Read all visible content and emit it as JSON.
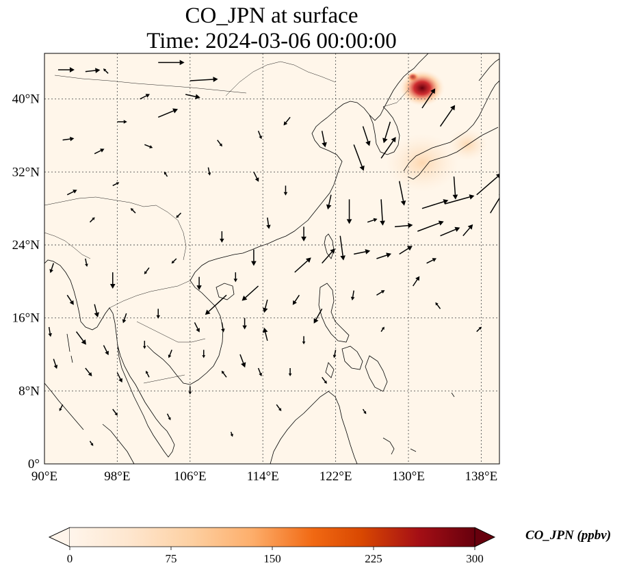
{
  "title": {
    "line1": "CO_JPN at surface",
    "line2": "Time: 2024-03-06 00:00:00"
  },
  "map": {
    "extent": {
      "lon_min": 90,
      "lon_max": 140,
      "lat_min": 0,
      "lat_max": 45
    },
    "background_color": "#fff6ea",
    "lon_ticks": [
      {
        "value": 90,
        "label": "90°E"
      },
      {
        "value": 98,
        "label": "98°E"
      },
      {
        "value": 106,
        "label": "106°E"
      },
      {
        "value": 114,
        "label": "114°E"
      },
      {
        "value": 122,
        "label": "122°E"
      },
      {
        "value": 130,
        "label": "130°E"
      },
      {
        "value": 138,
        "label": "138°E"
      }
    ],
    "lat_ticks": [
      {
        "value": 0,
        "label": "0°"
      },
      {
        "value": 8,
        "label": "8°N"
      },
      {
        "value": 16,
        "label": "16°N"
      },
      {
        "value": 24,
        "label": "24°N"
      },
      {
        "value": 32,
        "label": "32°N"
      },
      {
        "value": 40,
        "label": "40°N"
      }
    ],
    "hotspots": [
      {
        "lon": 130.5,
        "lat": 42.4,
        "value": 300,
        "radius_deg": 0.7
      },
      {
        "lon": 131.5,
        "lat": 41.2,
        "value": 160,
        "radius_deg": 2.5
      },
      {
        "lon": 136.5,
        "lat": 35.0,
        "value": 90,
        "radius_deg": 2.2
      },
      {
        "lon": 131.5,
        "lat": 33.0,
        "value": 40,
        "radius_deg": 4.0
      }
    ],
    "wind_vectors": [
      {
        "lon": 91.5,
        "lat": 43.2,
        "u": 1.0,
        "v": 0.0
      },
      {
        "lon": 94.5,
        "lat": 43.0,
        "u": 0.9,
        "v": 0.1
      },
      {
        "lon": 97.0,
        "lat": 42.8,
        "u": -0.3,
        "v": 0.3
      },
      {
        "lon": 102.5,
        "lat": 44.0,
        "u": 1.6,
        "v": 0.0
      },
      {
        "lon": 106.0,
        "lat": 42.0,
        "u": 1.7,
        "v": 0.1
      },
      {
        "lon": 100.5,
        "lat": 40.0,
        "u": 0.6,
        "v": 0.3
      },
      {
        "lon": 105.5,
        "lat": 40.5,
        "u": 0.9,
        "v": -0.2
      },
      {
        "lon": 102.5,
        "lat": 38.0,
        "u": 1.2,
        "v": 0.5
      },
      {
        "lon": 98.0,
        "lat": 37.5,
        "u": 0.6,
        "v": 0.0
      },
      {
        "lon": 92.0,
        "lat": 35.5,
        "u": 0.7,
        "v": 0.1
      },
      {
        "lon": 95.5,
        "lat": 34.0,
        "u": 0.6,
        "v": 0.3
      },
      {
        "lon": 101.0,
        "lat": 35.0,
        "u": 0.5,
        "v": -0.2
      },
      {
        "lon": 109.0,
        "lat": 35.5,
        "u": 0.3,
        "v": -0.4
      },
      {
        "lon": 113.5,
        "lat": 36.5,
        "u": 0.2,
        "v": -0.5
      },
      {
        "lon": 117.0,
        "lat": 38.0,
        "u": -0.4,
        "v": -0.5
      },
      {
        "lon": 120.5,
        "lat": 36.5,
        "u": 0.2,
        "v": -1.0
      },
      {
        "lon": 125.0,
        "lat": 37.0,
        "u": 0.4,
        "v": -1.2
      },
      {
        "lon": 128.0,
        "lat": 37.5,
        "u": -0.4,
        "v": -1.3
      },
      {
        "lon": 131.5,
        "lat": 39.0,
        "u": 0.8,
        "v": 1.2
      },
      {
        "lon": 133.5,
        "lat": 37.0,
        "u": 0.9,
        "v": 1.3
      },
      {
        "lon": 124.0,
        "lat": 35.0,
        "u": 0.6,
        "v": -1.6
      },
      {
        "lon": 127.0,
        "lat": 33.5,
        "u": 0.9,
        "v": 1.3
      },
      {
        "lon": 129.0,
        "lat": 31.0,
        "u": 0.3,
        "v": -1.5
      },
      {
        "lon": 135.0,
        "lat": 31.5,
        "u": 0.1,
        "v": -1.4
      },
      {
        "lon": 137.5,
        "lat": 29.5,
        "u": 1.5,
        "v": 1.3
      },
      {
        "lon": 139.0,
        "lat": 27.5,
        "u": 0.8,
        "v": 1.3
      },
      {
        "lon": 134.0,
        "lat": 28.5,
        "u": 1.8,
        "v": 0.5
      },
      {
        "lon": 131.5,
        "lat": 28.0,
        "u": 1.6,
        "v": 0.5
      },
      {
        "lon": 127.0,
        "lat": 29.0,
        "u": 0.1,
        "v": -1.6
      },
      {
        "lon": 123.5,
        "lat": 29.0,
        "u": 0.0,
        "v": -1.5
      },
      {
        "lon": 125.5,
        "lat": 26.5,
        "u": 0.6,
        "v": 0.2
      },
      {
        "lon": 128.5,
        "lat": 26.0,
        "u": 1.1,
        "v": 0.1
      },
      {
        "lon": 131.0,
        "lat": 25.5,
        "u": 1.6,
        "v": 0.6
      },
      {
        "lon": 133.5,
        "lat": 25.0,
        "u": 1.2,
        "v": 0.5
      },
      {
        "lon": 136.0,
        "lat": 25.0,
        "u": 0.6,
        "v": 0.7
      },
      {
        "lon": 124.0,
        "lat": 23.0,
        "u": 1.0,
        "v": 0.2
      },
      {
        "lon": 126.5,
        "lat": 22.5,
        "u": 0.9,
        "v": 0.3
      },
      {
        "lon": 129.0,
        "lat": 23.0,
        "u": 0.8,
        "v": 0.5
      },
      {
        "lon": 132.0,
        "lat": 22.0,
        "u": 0.6,
        "v": 0.3
      },
      {
        "lon": 122.5,
        "lat": 25.0,
        "u": 0.2,
        "v": -1.5
      },
      {
        "lon": 120.5,
        "lat": 22.0,
        "u": 0.8,
        "v": 0.9
      },
      {
        "lon": 117.5,
        "lat": 21.0,
        "u": 1.0,
        "v": 0.9
      },
      {
        "lon": 113.5,
        "lat": 19.5,
        "u": -1.0,
        "v": -0.9
      },
      {
        "lon": 110.0,
        "lat": 18.5,
        "u": -1.3,
        "v": -1.2
      },
      {
        "lon": 107.0,
        "lat": 20.5,
        "u": 0.0,
        "v": -0.8
      },
      {
        "lon": 111.0,
        "lat": 21.0,
        "u": 0.0,
        "v": -0.6
      },
      {
        "lon": 113.0,
        "lat": 23.5,
        "u": 0.0,
        "v": -1.0
      },
      {
        "lon": 118.5,
        "lat": 26.0,
        "u": 0.0,
        "v": -0.9
      },
      {
        "lon": 121.5,
        "lat": 29.5,
        "u": -0.2,
        "v": -0.9
      },
      {
        "lon": 114.5,
        "lat": 27.0,
        "u": 0.1,
        "v": -0.7
      },
      {
        "lon": 109.5,
        "lat": 25.5,
        "u": 0.0,
        "v": -0.7
      },
      {
        "lon": 105.0,
        "lat": 27.5,
        "u": -0.3,
        "v": -0.3
      },
      {
        "lon": 100.0,
        "lat": 27.5,
        "u": -0.3,
        "v": 0.3
      },
      {
        "lon": 95.0,
        "lat": 26.5,
        "u": 0.3,
        "v": 0.3
      },
      {
        "lon": 92.5,
        "lat": 29.5,
        "u": 0.6,
        "v": 0.3
      },
      {
        "lon": 97.5,
        "lat": 30.5,
        "u": 0.4,
        "v": 0.2
      },
      {
        "lon": 103.5,
        "lat": 31.5,
        "u": -0.2,
        "v": 0.3
      },
      {
        "lon": 108.0,
        "lat": 32.5,
        "u": 0.1,
        "v": -0.5
      },
      {
        "lon": 113.0,
        "lat": 32.0,
        "u": 0.3,
        "v": -0.6
      },
      {
        "lon": 116.5,
        "lat": 30.5,
        "u": 0.0,
        "v": -0.6
      },
      {
        "lon": 91.0,
        "lat": 22.0,
        "u": -0.2,
        "v": -0.6
      },
      {
        "lon": 94.5,
        "lat": 22.5,
        "u": 0.1,
        "v": -0.5
      },
      {
        "lon": 97.5,
        "lat": 21.0,
        "u": 0.0,
        "v": -1.0
      },
      {
        "lon": 101.5,
        "lat": 21.5,
        "u": -0.3,
        "v": -0.4
      },
      {
        "lon": 104.5,
        "lat": 22.5,
        "u": -0.3,
        "v": -0.3
      },
      {
        "lon": 92.5,
        "lat": 18.5,
        "u": 0.4,
        "v": -0.6
      },
      {
        "lon": 95.5,
        "lat": 17.5,
        "u": 0.2,
        "v": -0.8
      },
      {
        "lon": 99.0,
        "lat": 16.5,
        "u": -0.2,
        "v": -0.6
      },
      {
        "lon": 102.5,
        "lat": 17.0,
        "u": 0.0,
        "v": -0.6
      },
      {
        "lon": 106.5,
        "lat": 15.5,
        "u": 0.3,
        "v": -0.6
      },
      {
        "lon": 109.5,
        "lat": 15.5,
        "u": 0.1,
        "v": -0.6
      },
      {
        "lon": 112.0,
        "lat": 16.0,
        "u": 0.0,
        "v": -0.7
      },
      {
        "lon": 114.5,
        "lat": 18.0,
        "u": -0.2,
        "v": -0.8
      },
      {
        "lon": 118.0,
        "lat": 18.5,
        "u": -0.4,
        "v": -0.6
      },
      {
        "lon": 120.5,
        "lat": 17.0,
        "u": -0.5,
        "v": -0.9
      },
      {
        "lon": 124.0,
        "lat": 19.0,
        "u": -0.1,
        "v": -0.6
      },
      {
        "lon": 126.5,
        "lat": 18.5,
        "u": 0.5,
        "v": 0.3
      },
      {
        "lon": 130.5,
        "lat": 19.5,
        "u": 0.4,
        "v": 0.6
      },
      {
        "lon": 133.5,
        "lat": 17.0,
        "u": -0.3,
        "v": 0.4
      },
      {
        "lon": 90.5,
        "lat": 15.0,
        "u": 0.1,
        "v": -0.6
      },
      {
        "lon": 93.5,
        "lat": 14.5,
        "u": 0.6,
        "v": -0.8
      },
      {
        "lon": 96.5,
        "lat": 13.0,
        "u": 0.3,
        "v": -0.6
      },
      {
        "lon": 101.0,
        "lat": 13.5,
        "u": 0.0,
        "v": -0.5
      },
      {
        "lon": 104.0,
        "lat": 12.5,
        "u": -0.2,
        "v": -0.5
      },
      {
        "lon": 107.5,
        "lat": 12.5,
        "u": 0.0,
        "v": -0.5
      },
      {
        "lon": 111.5,
        "lat": 12.0,
        "u": 0.3,
        "v": -0.8
      },
      {
        "lon": 114.5,
        "lat": 13.5,
        "u": -0.2,
        "v": 0.8
      },
      {
        "lon": 118.5,
        "lat": 14.0,
        "u": 0.0,
        "v": -0.5
      },
      {
        "lon": 122.0,
        "lat": 12.5,
        "u": -0.1,
        "v": -0.5
      },
      {
        "lon": 127.0,
        "lat": 14.5,
        "u": 0.2,
        "v": 0.3
      },
      {
        "lon": 137.5,
        "lat": 14.5,
        "u": 0.3,
        "v": 0.3
      },
      {
        "lon": 91.0,
        "lat": 11.5,
        "u": 0.2,
        "v": -0.6
      },
      {
        "lon": 94.5,
        "lat": 10.5,
        "u": 0.4,
        "v": -0.5
      },
      {
        "lon": 98.0,
        "lat": 10.0,
        "u": 0.3,
        "v": -0.6
      },
      {
        "lon": 101.5,
        "lat": 9.5,
        "u": -0.2,
        "v": 0.4
      },
      {
        "lon": 106.0,
        "lat": 8.5,
        "u": 0.0,
        "v": -0.5
      },
      {
        "lon": 110.0,
        "lat": 9.5,
        "u": -0.3,
        "v": 0.4
      },
      {
        "lon": 113.5,
        "lat": 10.5,
        "u": 0.2,
        "v": -0.5
      },
      {
        "lon": 117.0,
        "lat": 10.5,
        "u": 0.0,
        "v": -0.5
      },
      {
        "lon": 120.5,
        "lat": 9.5,
        "u": 0.3,
        "v": -0.4
      },
      {
        "lon": 92.0,
        "lat": 6.5,
        "u": -0.2,
        "v": -0.4
      },
      {
        "lon": 97.5,
        "lat": 6.0,
        "u": 0.3,
        "v": -0.4
      },
      {
        "lon": 103.5,
        "lat": 5.5,
        "u": 0.2,
        "v": -0.4
      },
      {
        "lon": 115.5,
        "lat": 6.5,
        "u": 0.3,
        "v": -0.4
      },
      {
        "lon": 125.0,
        "lat": 6.0,
        "u": 0.2,
        "v": -0.3
      },
      {
        "lon": 95.0,
        "lat": 2.5,
        "u": 0.2,
        "v": -0.3
      },
      {
        "lon": 110.5,
        "lat": 3.5,
        "u": 0.1,
        "v": -0.3
      }
    ]
  },
  "colorbar": {
    "label": "CO_JPN (ppbv)",
    "min": 0,
    "max": 300,
    "extend": "both",
    "ticks": [
      {
        "value": 0,
        "label": "0"
      },
      {
        "value": 75,
        "label": "75"
      },
      {
        "value": 150,
        "label": "150"
      },
      {
        "value": 225,
        "label": "225"
      },
      {
        "value": 300,
        "label": "300"
      }
    ],
    "colors": [
      "#fff5eb",
      "#fee6ce",
      "#fdd0a2",
      "#fdae6b",
      "#f16913",
      "#d94801",
      "#a50f15",
      "#67000d"
    ]
  }
}
